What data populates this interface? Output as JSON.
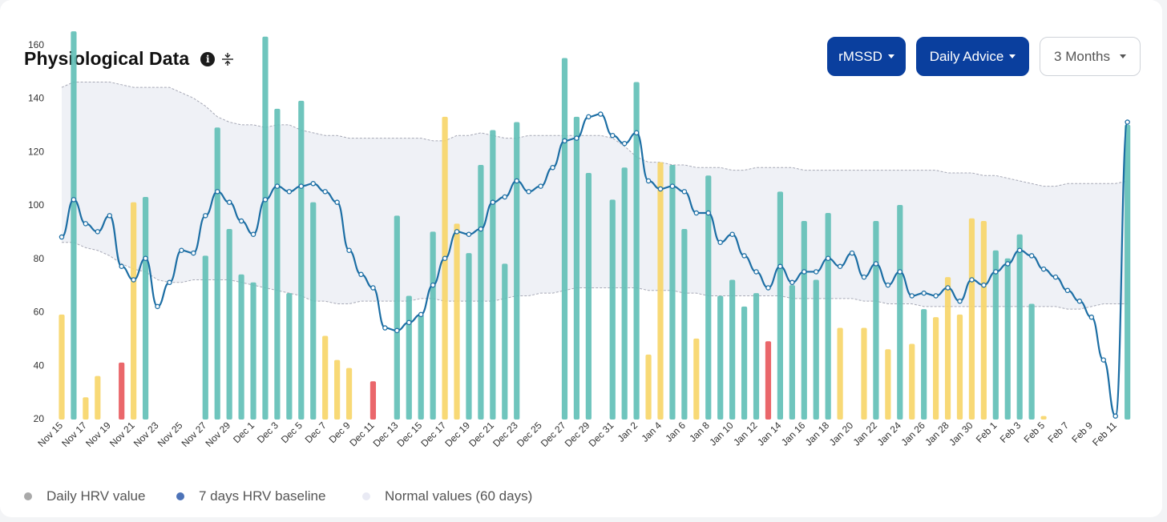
{
  "header": {
    "title": "Physiological Data"
  },
  "icons": {
    "info": "info-icon",
    "compress": "compress-vertical-icon"
  },
  "controls": {
    "metric": "rMSSD",
    "advice": "Daily Advice",
    "range": "3 Months"
  },
  "colors": {
    "teal": "#5fbfb6",
    "yellow": "#f7d567",
    "red": "#e8575b",
    "baseline": "#1c6ea4",
    "band": "#eceef5"
  },
  "legend": [
    {
      "label": "Daily HRV value",
      "color": "#a9a9a9"
    },
    {
      "label": "7 days HRV baseline",
      "color": "#4d73b8"
    },
    {
      "label": "Normal values (60 days)",
      "color": "#e9eaf4"
    }
  ],
  "chart_data": {
    "type": "bar",
    "yticks": [
      20,
      40,
      60,
      80,
      100,
      120,
      140,
      160
    ],
    "ylim": [
      9,
      170
    ],
    "xtick_labels": [
      "Nov 15",
      "Nov 17",
      "Nov 19",
      "Nov 21",
      "Nov 23",
      "Nov 25",
      "Nov 27",
      "Nov 29",
      "Dec 1",
      "Dec 3",
      "Dec 5",
      "Dec 7",
      "Dec 9",
      "Dec 11",
      "Dec 13",
      "Dec 15",
      "Dec 17",
      "Dec 19",
      "Dec 21",
      "Dec 23",
      "Dec 25",
      "Dec 27",
      "Dec 29",
      "Dec 31",
      "Jan 2",
      "Jan 4",
      "Jan 6",
      "Jan 8",
      "Jan 10",
      "Jan 12",
      "Jan 14",
      "Jan 16",
      "Jan 18",
      "Jan 20",
      "Jan 22",
      "Jan 24",
      "Jan 26",
      "Jan 28",
      "Jan 30",
      "Feb 1",
      "Feb 3",
      "Feb 5",
      "Feb 7",
      "Feb 9",
      "Feb 11"
    ],
    "bars": [
      {
        "d": 0,
        "v": 59,
        "c": "y"
      },
      {
        "d": 1,
        "v": 165,
        "c": "t"
      },
      {
        "d": 2,
        "v": 28,
        "c": "y"
      },
      {
        "d": 3,
        "v": 36,
        "c": "y"
      },
      {
        "d": 5,
        "v": 41,
        "c": "r"
      },
      {
        "d": 6,
        "v": 101,
        "c": "y"
      },
      {
        "d": 7,
        "v": 103,
        "c": "t"
      },
      {
        "d": 12,
        "v": 81,
        "c": "t"
      },
      {
        "d": 13,
        "v": 129,
        "c": "t"
      },
      {
        "d": 14,
        "v": 91,
        "c": "t"
      },
      {
        "d": 15,
        "v": 74,
        "c": "t"
      },
      {
        "d": 16,
        "v": 71,
        "c": "t"
      },
      {
        "d": 17,
        "v": 163,
        "c": "t"
      },
      {
        "d": 18,
        "v": 136,
        "c": "t"
      },
      {
        "d": 19,
        "v": 67,
        "c": "t"
      },
      {
        "d": 20,
        "v": 139,
        "c": "t"
      },
      {
        "d": 21,
        "v": 101,
        "c": "t"
      },
      {
        "d": 22,
        "v": 51,
        "c": "y"
      },
      {
        "d": 23,
        "v": 42,
        "c": "y"
      },
      {
        "d": 24,
        "v": 39,
        "c": "y"
      },
      {
        "d": 26,
        "v": 34,
        "c": "r"
      },
      {
        "d": 28,
        "v": 96,
        "c": "t"
      },
      {
        "d": 29,
        "v": 66,
        "c": "t"
      },
      {
        "d": 30,
        "v": 59,
        "c": "t"
      },
      {
        "d": 31,
        "v": 90,
        "c": "t"
      },
      {
        "d": 32,
        "v": 133,
        "c": "y"
      },
      {
        "d": 33,
        "v": 93,
        "c": "y"
      },
      {
        "d": 34,
        "v": 82,
        "c": "t"
      },
      {
        "d": 35,
        "v": 115,
        "c": "t"
      },
      {
        "d": 36,
        "v": 128,
        "c": "t"
      },
      {
        "d": 37,
        "v": 78,
        "c": "t"
      },
      {
        "d": 38,
        "v": 131,
        "c": "t"
      },
      {
        "d": 42,
        "v": 155,
        "c": "t"
      },
      {
        "d": 43,
        "v": 133,
        "c": "t"
      },
      {
        "d": 44,
        "v": 112,
        "c": "t"
      },
      {
        "d": 46,
        "v": 102,
        "c": "t"
      },
      {
        "d": 47,
        "v": 114,
        "c": "t"
      },
      {
        "d": 48,
        "v": 146,
        "c": "t"
      },
      {
        "d": 49,
        "v": 44,
        "c": "y"
      },
      {
        "d": 50,
        "v": 116,
        "c": "y"
      },
      {
        "d": 51,
        "v": 115,
        "c": "t"
      },
      {
        "d": 52,
        "v": 91,
        "c": "t"
      },
      {
        "d": 53,
        "v": 50,
        "c": "y"
      },
      {
        "d": 54,
        "v": 111,
        "c": "t"
      },
      {
        "d": 55,
        "v": 66,
        "c": "t"
      },
      {
        "d": 56,
        "v": 72,
        "c": "t"
      },
      {
        "d": 57,
        "v": 62,
        "c": "t"
      },
      {
        "d": 58,
        "v": 67,
        "c": "t"
      },
      {
        "d": 59,
        "v": 49,
        "c": "r"
      },
      {
        "d": 60,
        "v": 105,
        "c": "t"
      },
      {
        "d": 61,
        "v": 70,
        "c": "t"
      },
      {
        "d": 62,
        "v": 94,
        "c": "t"
      },
      {
        "d": 63,
        "v": 72,
        "c": "t"
      },
      {
        "d": 64,
        "v": 97,
        "c": "t"
      },
      {
        "d": 65,
        "v": 54,
        "c": "y"
      },
      {
        "d": 67,
        "v": 54,
        "c": "y"
      },
      {
        "d": 68,
        "v": 94,
        "c": "t"
      },
      {
        "d": 69,
        "v": 46,
        "c": "y"
      },
      {
        "d": 70,
        "v": 100,
        "c": "t"
      },
      {
        "d": 71,
        "v": 48,
        "c": "y"
      },
      {
        "d": 72,
        "v": 61,
        "c": "t"
      },
      {
        "d": 73,
        "v": 58,
        "c": "y"
      },
      {
        "d": 74,
        "v": 73,
        "c": "y"
      },
      {
        "d": 75,
        "v": 59,
        "c": "y"
      },
      {
        "d": 76,
        "v": 95,
        "c": "y"
      },
      {
        "d": 77,
        "v": 94,
        "c": "y"
      },
      {
        "d": 78,
        "v": 83,
        "c": "t"
      },
      {
        "d": 79,
        "v": 80,
        "c": "t"
      },
      {
        "d": 80,
        "v": 89,
        "c": "t"
      },
      {
        "d": 81,
        "v": 63,
        "c": "t"
      },
      {
        "d": 82,
        "v": 21,
        "c": "y"
      },
      {
        "d": 89,
        "v": 130,
        "c": "t"
      }
    ],
    "baseline": [
      88,
      102,
      93,
      90,
      96,
      77,
      72,
      80,
      62,
      71,
      83,
      82,
      96,
      105,
      101,
      94,
      89,
      102,
      107,
      105,
      107,
      108,
      105,
      101,
      83,
      74,
      69,
      54,
      53,
      56,
      59,
      70,
      80,
      90,
      89,
      91,
      101,
      103,
      109,
      105,
      107,
      114,
      124,
      125,
      133,
      134,
      126,
      123,
      127,
      109,
      106,
      107,
      105,
      97,
      97,
      86,
      89,
      81,
      75,
      69,
      77,
      71,
      75,
      75,
      80,
      77,
      82,
      73,
      78,
      70,
      75,
      66,
      67,
      66,
      69,
      64,
      72,
      70,
      75,
      78,
      83,
      81,
      76,
      73,
      68,
      64,
      58,
      42,
      21,
      131
    ],
    "band_upper": [
      144,
      146,
      146,
      146,
      146,
      145,
      144,
      144,
      144,
      144,
      142,
      140,
      137,
      133,
      131,
      130,
      130,
      129,
      130,
      130,
      128,
      127,
      126,
      126,
      125,
      125,
      125,
      125,
      125,
      125,
      125,
      124,
      124,
      126,
      126,
      127,
      126,
      125,
      125,
      126,
      126,
      126,
      126,
      126,
      126,
      126,
      125,
      122,
      118,
      116,
      116,
      115,
      115,
      114,
      114,
      114,
      113,
      113,
      114,
      114,
      114,
      114,
      113,
      113,
      113,
      113,
      113,
      113,
      113,
      113,
      113,
      113,
      113,
      113,
      112,
      112,
      112,
      111,
      111,
      110,
      109,
      108,
      107,
      107,
      108,
      108,
      108,
      108,
      108,
      109
    ],
    "band_lower": [
      86,
      86,
      84,
      83,
      81,
      78,
      76,
      75,
      72,
      71,
      71,
      72,
      72,
      72,
      72,
      71,
      70,
      69,
      68,
      67,
      66,
      64,
      64,
      63,
      63,
      64,
      64,
      64,
      64,
      64,
      65,
      65,
      64,
      64,
      64,
      64,
      64,
      65,
      66,
      66,
      67,
      67,
      68,
      69,
      69,
      69,
      69,
      69,
      69,
      68,
      68,
      68,
      67,
      67,
      66,
      66,
      66,
      66,
      66,
      66,
      66,
      65,
      65,
      65,
      65,
      65,
      65,
      64,
      64,
      63,
      63,
      63,
      62,
      62,
      62,
      62,
      62,
      62,
      62,
      62,
      62,
      62,
      62,
      62,
      61,
      61,
      62,
      63,
      63,
      63
    ]
  }
}
